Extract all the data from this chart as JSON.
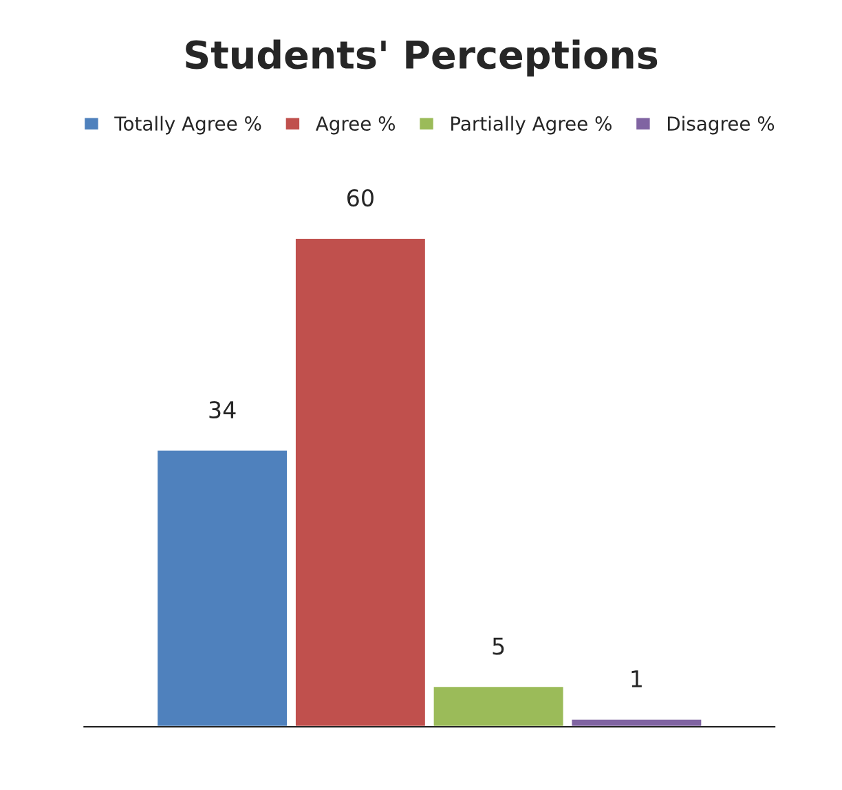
{
  "chart_data": {
    "type": "bar",
    "title": "Students' Perceptions",
    "categories": [
      null
    ],
    "series": [
      {
        "name": "Totally Agree %",
        "color": "#4f81bd",
        "values": [
          34
        ]
      },
      {
        "name": "Agree %",
        "color": "#c0504d",
        "values": [
          60
        ]
      },
      {
        "name": "Partially Agree %",
        "color": "#9bbb59",
        "values": [
          5
        ]
      },
      {
        "name": "Disagree %",
        "color": "#8064a2",
        "values": [
          1
        ]
      }
    ],
    "data_labels": true,
    "legend": "top",
    "grid": false
  }
}
